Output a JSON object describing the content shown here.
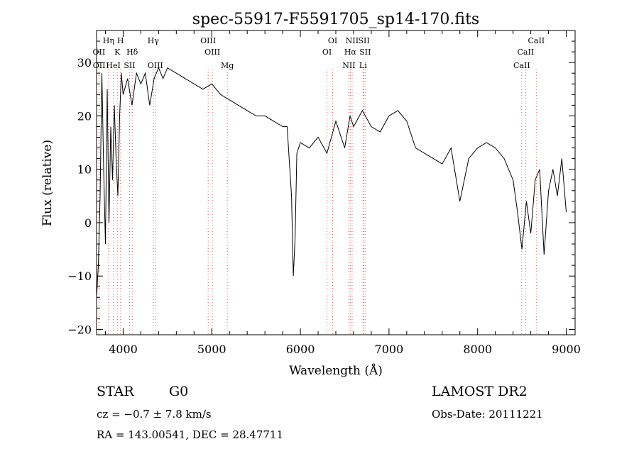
{
  "chart_data": {
    "type": "line",
    "title": "spec-55917-F5591705_sp14-170.fits",
    "xlabel": "Wavelength (Å)",
    "ylabel": "Flux (relative)",
    "xlim": [
      3700,
      9100
    ],
    "ylim": [
      -21,
      36
    ],
    "xticks": [
      4000,
      5000,
      6000,
      7000,
      8000,
      9000
    ],
    "yticks": [
      -20,
      -10,
      0,
      10,
      20,
      30
    ],
    "grid": false,
    "line_color": "#000000",
    "marker_color": "#e06060",
    "series": [
      {
        "x": [
          3700,
          3720,
          3740,
          3760,
          3780,
          3800,
          3820,
          3840,
          3860,
          3880,
          3900,
          3920,
          3940,
          3960,
          3980,
          4000,
          4050,
          4100,
          4150,
          4200,
          4250,
          4300,
          4350,
          4400,
          4450,
          4500,
          4600,
          4700,
          4800,
          4900,
          5000,
          5100,
          5200,
          5300,
          5400,
          5500,
          5600,
          5700,
          5800,
          5850,
          5900,
          5920,
          5940,
          5960,
          6000,
          6100,
          6200,
          6300,
          6400,
          6500,
          6560,
          6600,
          6700,
          6800,
          6900,
          7000,
          7100,
          7200,
          7300,
          7400,
          7500,
          7600,
          7700,
          7800,
          7900,
          8000,
          8100,
          8200,
          8300,
          8400,
          8450,
          8500,
          8550,
          8600,
          8650,
          8700,
          8750,
          8800,
          8850,
          8900,
          8950,
          9000
        ],
        "values": [
          -14,
          -8,
          5,
          28,
          10,
          -4,
          25,
          0,
          18,
          8,
          22,
          12,
          5,
          20,
          28,
          24,
          27,
          22,
          28,
          26,
          28,
          22,
          27,
          29,
          27,
          29,
          28,
          27,
          26,
          25,
          26,
          24,
          23,
          22,
          21,
          20,
          20,
          19,
          18,
          18,
          5,
          -10,
          -3,
          13,
          15,
          14,
          16,
          13,
          19,
          14,
          20,
          18,
          21,
          18,
          17,
          20,
          21,
          19,
          14,
          13,
          12,
          11,
          14,
          4,
          12,
          14,
          15,
          14,
          12,
          8,
          2,
          -5,
          4,
          -2,
          8,
          10,
          -6,
          6,
          10,
          5,
          12,
          2
        ]
      }
    ],
    "line_markers": [
      {
        "wavelength": 3727,
        "label": "OII",
        "row": 2
      },
      {
        "wavelength": 3729,
        "label": "OII",
        "row": 3
      },
      {
        "wavelength": 3835,
        "label": "Hη",
        "row": 1
      },
      {
        "wavelength": 3889,
        "label": "HeI",
        "row": 3
      },
      {
        "wavelength": 3934,
        "label": "K",
        "row": 2
      },
      {
        "wavelength": 3970,
        "label": "H",
        "row": 1
      },
      {
        "wavelength": 4072,
        "label": "SII",
        "row": 3
      },
      {
        "wavelength": 4102,
        "label": "Hδ",
        "row": 2
      },
      {
        "wavelength": 4340,
        "label": "Hγ",
        "row": 1
      },
      {
        "wavelength": 4363,
        "label": "OIII",
        "row": 3
      },
      {
        "wavelength": 4959,
        "label": "OIII",
        "row": 1
      },
      {
        "wavelength": 5007,
        "label": "OIII",
        "row": 2
      },
      {
        "wavelength": 5175,
        "label": "Mg",
        "row": 3
      },
      {
        "wavelength": 6300,
        "label": "OI",
        "row": 2
      },
      {
        "wavelength": 6364,
        "label": "OI",
        "row": 1
      },
      {
        "wavelength": 6548,
        "label": "NII",
        "row": 3
      },
      {
        "wavelength": 6563,
        "label": "Hα",
        "row": 2
      },
      {
        "wavelength": 6584,
        "label": "NII",
        "row": 1
      },
      {
        "wavelength": 6707,
        "label": "Li",
        "row": 3
      },
      {
        "wavelength": 6717,
        "label": "SII",
        "row": 1
      },
      {
        "wavelength": 6731,
        "label": "SII",
        "row": 2
      },
      {
        "wavelength": 8498,
        "label": "CaII",
        "row": 3
      },
      {
        "wavelength": 8542,
        "label": "CaII",
        "row": 2
      },
      {
        "wavelength": 8662,
        "label": "CaII",
        "row": 1
      }
    ]
  },
  "info": {
    "class": "STAR",
    "subclass": "G0",
    "cz": "cz = −0.7 ± 7.8 km/s",
    "radec": "RA = 143.00541, DEC =  28.47711",
    "survey": "LAMOST DR2",
    "obsdate": "Obs-Date: 20111221"
  }
}
